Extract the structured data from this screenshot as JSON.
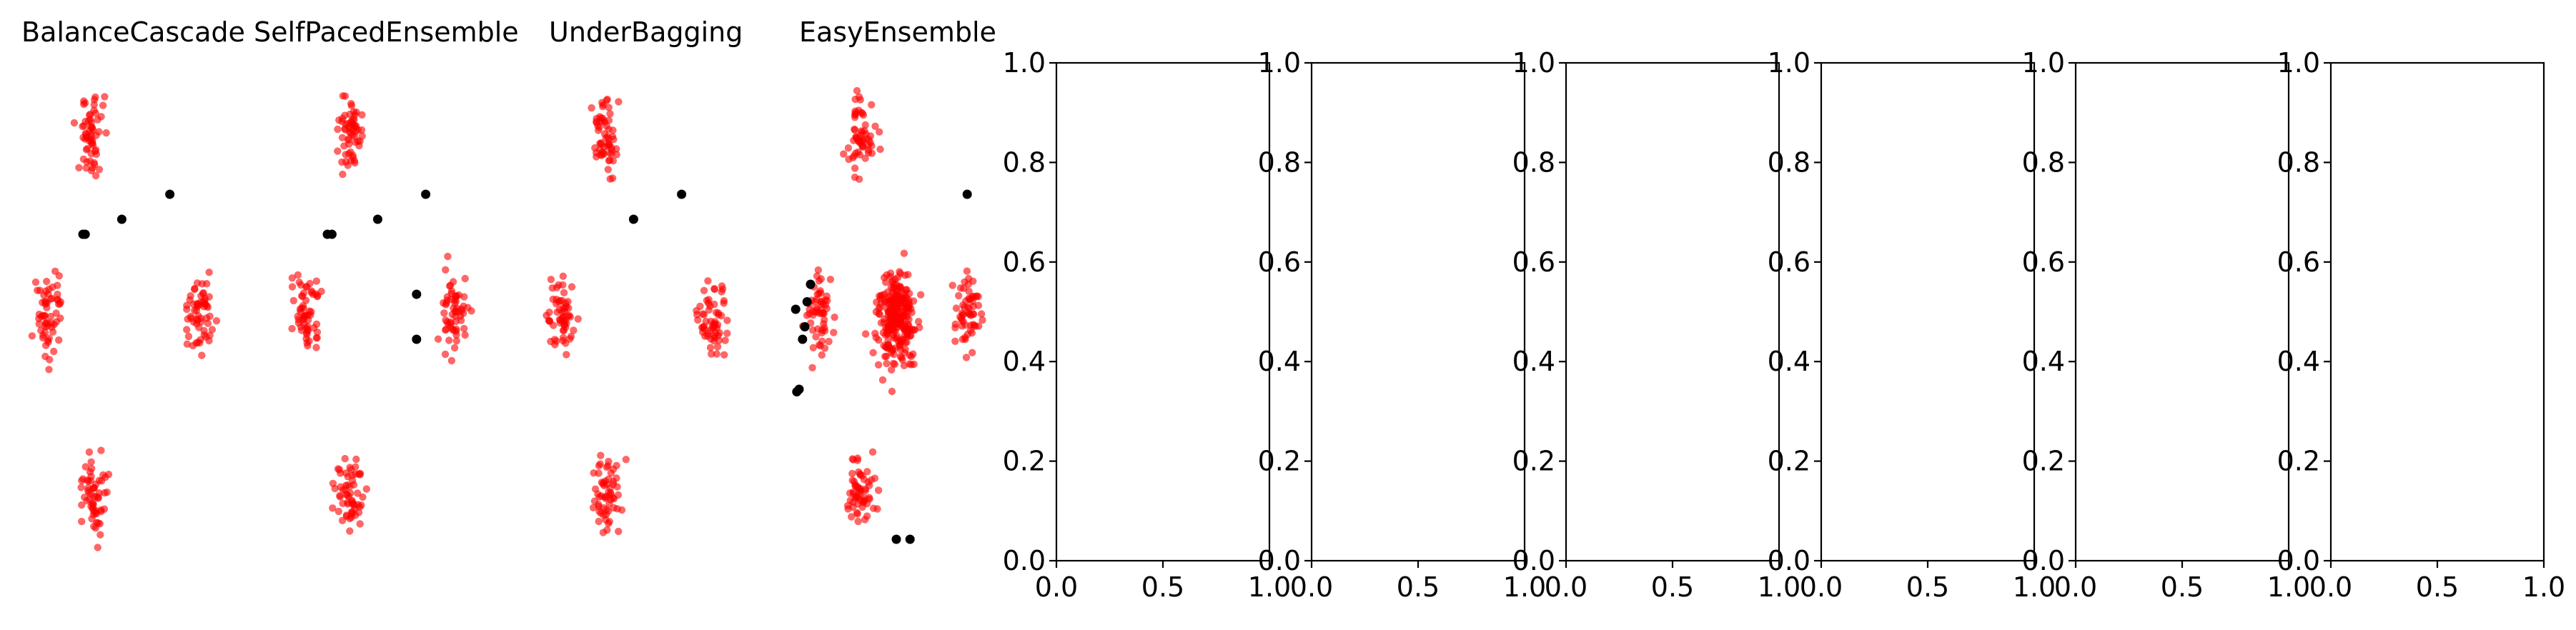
{
  "figure": {
    "scatter_titles": [
      "BalanceCascade",
      "SelfPacedEnsemble",
      "UnderBagging",
      "EasyEnsemble"
    ],
    "empty_axes_count": 6
  },
  "colors": {
    "majority": "#ff0000",
    "minority": "#000000",
    "axes": "#000000"
  },
  "chart_data": [
    {
      "type": "scatter",
      "title": "BalanceCascade",
      "axis_visible": false,
      "xlim": [
        -1,
        1
      ],
      "ylim": [
        -1,
        1
      ],
      "series": [
        {
          "name": "",
          "color": "#ff0000",
          "cluster_centers": [
            [
              -0.3,
              0.72
            ],
            [
              0.62,
              0.0
            ],
            [
              -0.68,
              0.0
            ],
            [
              -0.3,
              -0.72
            ]
          ],
          "points_per_cluster": 60
        },
        {
          "name": "",
          "color": "#000000",
          "points": [
            [
              -0.06,
              0.38
            ],
            [
              0.36,
              0.48
            ],
            [
              -0.4,
              0.32
            ],
            [
              -0.38,
              0.32
            ]
          ]
        }
      ]
    },
    {
      "type": "scatter",
      "title": "SelfPacedEnsemble",
      "axis_visible": false,
      "xlim": [
        -1,
        1
      ],
      "ylim": [
        -1,
        1
      ],
      "series": [
        {
          "name": "",
          "color": "#ff0000",
          "cluster_centers": [
            [
              -0.3,
              0.72
            ],
            [
              0.62,
              0.0
            ],
            [
              -0.68,
              0.0
            ],
            [
              -0.3,
              -0.72
            ]
          ],
          "points_per_cluster": 60
        },
        {
          "name": "",
          "color": "#000000",
          "points": [
            [
              -0.06,
              0.38
            ],
            [
              0.36,
              0.48
            ],
            [
              -0.5,
              0.32
            ],
            [
              -0.46,
              0.32
            ],
            [
              0.28,
              0.08
            ],
            [
              0.28,
              -0.1
            ]
          ]
        }
      ]
    },
    {
      "type": "scatter",
      "title": "UnderBagging",
      "axis_visible": false,
      "xlim": [
        -1,
        1
      ],
      "ylim": [
        -1,
        1
      ],
      "series": [
        {
          "name": "",
          "color": "#ff0000",
          "cluster_centers": [
            [
              -0.3,
              0.72
            ],
            [
              0.62,
              0.0
            ],
            [
              -0.68,
              0.0
            ],
            [
              -0.3,
              -0.72
            ]
          ],
          "points_per_cluster": 60
        },
        {
          "name": "",
          "color": "#000000",
          "points": [
            [
              -0.06,
              0.38
            ],
            [
              0.36,
              0.48
            ]
          ]
        }
      ]
    },
    {
      "type": "scatter",
      "title": "EasyEnsemble",
      "axis_visible": false,
      "xlim": [
        -1,
        1
      ],
      "ylim": [
        -1,
        1
      ],
      "series": [
        {
          "name": "",
          "color": "#ff0000",
          "cluster_centers": [
            [
              -0.3,
              0.72
            ],
            [
              0.62,
              0.0
            ],
            [
              -0.68,
              0.0
            ],
            [
              -0.3,
              -0.72
            ],
            [
              0.0,
              0.0
            ]
          ],
          "points_per_cluster": 60
        },
        {
          "name": "",
          "color": "#000000",
          "points": [
            [
              -0.75,
              0.12
            ],
            [
              -0.78,
              0.05
            ],
            [
              -0.8,
              -0.05
            ],
            [
              -0.82,
              -0.1
            ],
            [
              -0.85,
              -0.3
            ],
            [
              -0.87,
              -0.31
            ],
            [
              -0.88,
              0.02
            ],
            [
              0.62,
              0.48
            ],
            [
              0.0,
              -0.9
            ],
            [
              0.12,
              -0.9
            ]
          ]
        }
      ]
    },
    {
      "type": "scatter",
      "title": "",
      "xlim": [
        0.0,
        1.0
      ],
      "ylim": [
        0.0,
        1.0
      ],
      "xticks": [
        "0.0",
        "0.5",
        "1.0"
      ],
      "yticks": [
        "0.0",
        "0.2",
        "0.4",
        "0.6",
        "0.8",
        "1.0"
      ],
      "series": []
    },
    {
      "type": "scatter",
      "title": "",
      "xlim": [
        0.0,
        1.0
      ],
      "ylim": [
        0.0,
        1.0
      ],
      "xticks": [
        "0.0",
        "0.5",
        "1.0"
      ],
      "yticks": [
        "0.0",
        "0.2",
        "0.4",
        "0.6",
        "0.8",
        "1.0"
      ],
      "series": []
    },
    {
      "type": "scatter",
      "title": "",
      "xlim": [
        0.0,
        1.0
      ],
      "ylim": [
        0.0,
        1.0
      ],
      "xticks": [
        "0.0",
        "0.5",
        "1.0"
      ],
      "yticks": [
        "0.0",
        "0.2",
        "0.4",
        "0.6",
        "0.8",
        "1.0"
      ],
      "series": []
    },
    {
      "type": "scatter",
      "title": "",
      "xlim": [
        0.0,
        1.0
      ],
      "ylim": [
        0.0,
        1.0
      ],
      "xticks": [
        "0.0",
        "0.5",
        "1.0"
      ],
      "yticks": [
        "0.0",
        "0.2",
        "0.4",
        "0.6",
        "0.8",
        "1.0"
      ],
      "series": []
    },
    {
      "type": "scatter",
      "title": "",
      "xlim": [
        0.0,
        1.0
      ],
      "ylim": [
        0.0,
        1.0
      ],
      "xticks": [
        "0.0",
        "0.5",
        "1.0"
      ],
      "yticks": [
        "0.0",
        "0.2",
        "0.4",
        "0.6",
        "0.8",
        "1.0"
      ],
      "series": []
    },
    {
      "type": "scatter",
      "title": "",
      "xlim": [
        0.0,
        1.0
      ],
      "ylim": [
        0.0,
        1.0
      ],
      "xticks": [
        "0.0",
        "0.5",
        "1.0"
      ],
      "yticks": [
        "0.0",
        "0.2",
        "0.4",
        "0.6",
        "0.8",
        "1.0"
      ],
      "series": []
    }
  ]
}
